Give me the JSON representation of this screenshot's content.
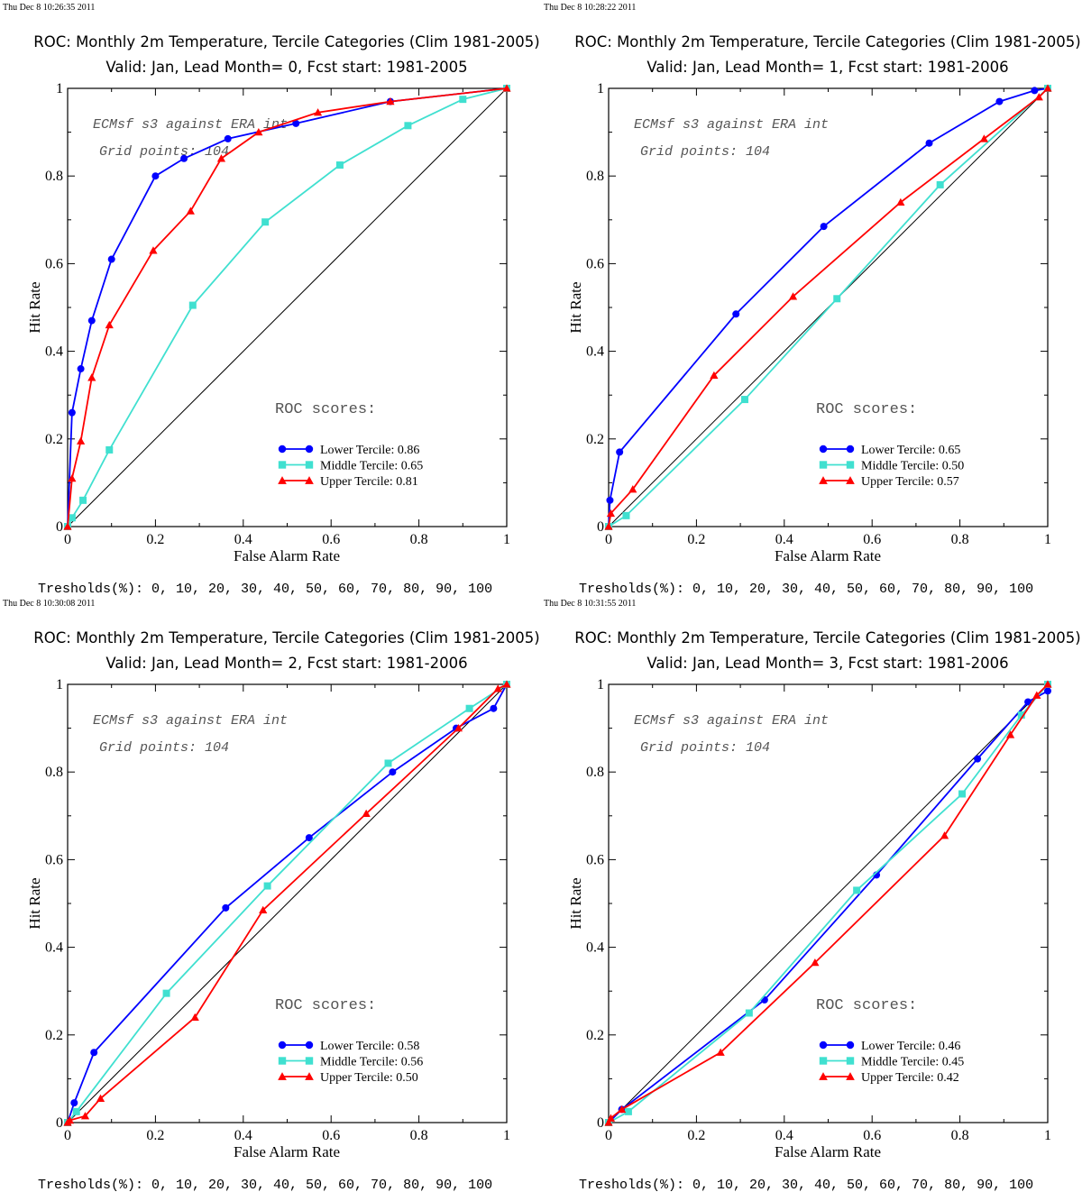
{
  "series_styles": [
    {
      "color": "#0000ff",
      "marker": "circle"
    },
    {
      "color": "#40e0d0",
      "marker": "square"
    },
    {
      "color": "#ff0000",
      "marker": "triangle"
    }
  ],
  "common": {
    "title_line1": "ROC: Monthly 2m Temperature, Tercile Categories (Clim 1981-2005)",
    "xlabel": "False Alarm Rate",
    "ylabel": "Hit Rate",
    "annotation_line1": "ECMsf s3 against ERA int",
    "annotation_line2": "Grid points:  104",
    "roc_scores_title": "ROC scores:",
    "thresholds": "Tresholds(%): 0, 10, 20, 30, 40, 50, 60, 70, 80, 90, 100",
    "x_ticks": [
      "0",
      "0.2",
      "0.4",
      "0.6",
      "0.8",
      "1"
    ],
    "y_ticks": [
      "0",
      "0.2",
      "0.4",
      "0.6",
      "0.8",
      "1"
    ]
  },
  "chart_data": [
    {
      "type": "line",
      "timestamp": "Thu Dec  8 10:26:35 2011",
      "title_line2": "Valid: Jan, Lead Month= 0, Fcst start: 1981-2005",
      "xlim": [
        0,
        1
      ],
      "ylim": [
        0,
        1
      ],
      "series": [
        {
          "name": "Lower Tercile: 0.86",
          "x": [
            0,
            0.01,
            0.03,
            0.055,
            0.1,
            0.2,
            0.265,
            0.365,
            0.52,
            0.735,
            1
          ],
          "y": [
            0,
            0.26,
            0.36,
            0.47,
            0.61,
            0.8,
            0.84,
            0.885,
            0.92,
            0.97,
            1
          ]
        },
        {
          "name": "Middle Tercile: 0.65",
          "x": [
            0,
            0.01,
            0.035,
            0.095,
            0.285,
            0.45,
            0.62,
            0.775,
            0.9,
            1
          ],
          "y": [
            0,
            0.02,
            0.06,
            0.175,
            0.505,
            0.695,
            0.825,
            0.915,
            0.975,
            1
          ]
        },
        {
          "name": "Upper Tercile: 0.81",
          "x": [
            0,
            0.01,
            0.03,
            0.055,
            0.095,
            0.195,
            0.28,
            0.35,
            0.435,
            0.57,
            0.735,
            1
          ],
          "y": [
            0,
            0.11,
            0.195,
            0.34,
            0.46,
            0.63,
            0.72,
            0.84,
            0.9,
            0.945,
            0.97,
            1
          ]
        }
      ]
    },
    {
      "type": "line",
      "timestamp": "Thu Dec  8 10:28:22 2011",
      "title_line2": "Valid: Jan, Lead Month= 1, Fcst start: 1981-2006",
      "xlim": [
        0,
        1
      ],
      "ylim": [
        0,
        1
      ],
      "series": [
        {
          "name": "Lower Tercile: 0.65",
          "x": [
            0,
            0.003,
            0.025,
            0.29,
            0.49,
            0.73,
            0.89,
            0.97,
            1
          ],
          "y": [
            0,
            0.06,
            0.17,
            0.485,
            0.685,
            0.875,
            0.97,
            0.995,
            1
          ]
        },
        {
          "name": "Middle Tercile: 0.50",
          "x": [
            0,
            0.04,
            0.31,
            0.52,
            0.755,
            1
          ],
          "y": [
            0,
            0.025,
            0.29,
            0.52,
            0.78,
            1
          ]
        },
        {
          "name": "Upper Tercile: 0.57",
          "x": [
            0,
            0.005,
            0.055,
            0.24,
            0.42,
            0.665,
            0.855,
            0.98,
            1
          ],
          "y": [
            0,
            0.03,
            0.085,
            0.345,
            0.525,
            0.74,
            0.885,
            0.98,
            1
          ]
        }
      ]
    },
    {
      "type": "line",
      "timestamp": "Thu Dec  8 10:30:08 2011",
      "title_line2": "Valid: Jan, Lead Month= 2, Fcst start: 1981-2006",
      "xlim": [
        0,
        1
      ],
      "ylim": [
        0,
        1
      ],
      "series": [
        {
          "name": "Lower Tercile: 0.58",
          "x": [
            0,
            0.015,
            0.06,
            0.36,
            0.55,
            0.74,
            0.885,
            0.97,
            1
          ],
          "y": [
            0,
            0.045,
            0.16,
            0.49,
            0.65,
            0.8,
            0.9,
            0.945,
            1
          ]
        },
        {
          "name": "Middle Tercile: 0.56",
          "x": [
            0,
            0.02,
            0.225,
            0.455,
            0.73,
            0.915,
            1
          ],
          "y": [
            0,
            0.025,
            0.295,
            0.54,
            0.82,
            0.945,
            1
          ]
        },
        {
          "name": "Upper Tercile: 0.50",
          "x": [
            0,
            0.005,
            0.04,
            0.075,
            0.29,
            0.445,
            0.68,
            0.89,
            0.98,
            1
          ],
          "y": [
            0,
            0.005,
            0.015,
            0.055,
            0.24,
            0.485,
            0.705,
            0.9,
            0.99,
            1
          ]
        }
      ]
    },
    {
      "type": "line",
      "timestamp": "Thu Dec  8 10:31:55 2011",
      "title_line2": "Valid: Jan, Lead Month= 3, Fcst start: 1981-2006",
      "xlim": [
        0,
        1
      ],
      "ylim": [
        0,
        1
      ],
      "series": [
        {
          "name": "Lower Tercile: 0.46",
          "x": [
            0,
            0.03,
            0.355,
            0.61,
            0.84,
            0.955,
            1
          ],
          "y": [
            0,
            0.03,
            0.28,
            0.565,
            0.83,
            0.96,
            0.985
          ]
        },
        {
          "name": "Middle Tercile: 0.45",
          "x": [
            0,
            0.045,
            0.32,
            0.565,
            0.805,
            0.94,
            1
          ],
          "y": [
            0,
            0.025,
            0.25,
            0.53,
            0.75,
            0.93,
            1
          ]
        },
        {
          "name": "Upper Tercile: 0.42",
          "x": [
            0,
            0.005,
            0.03,
            0.255,
            0.47,
            0.765,
            0.915,
            0.975,
            1
          ],
          "y": [
            0,
            0.01,
            0.03,
            0.16,
            0.365,
            0.655,
            0.885,
            0.975,
            1
          ]
        }
      ]
    }
  ]
}
